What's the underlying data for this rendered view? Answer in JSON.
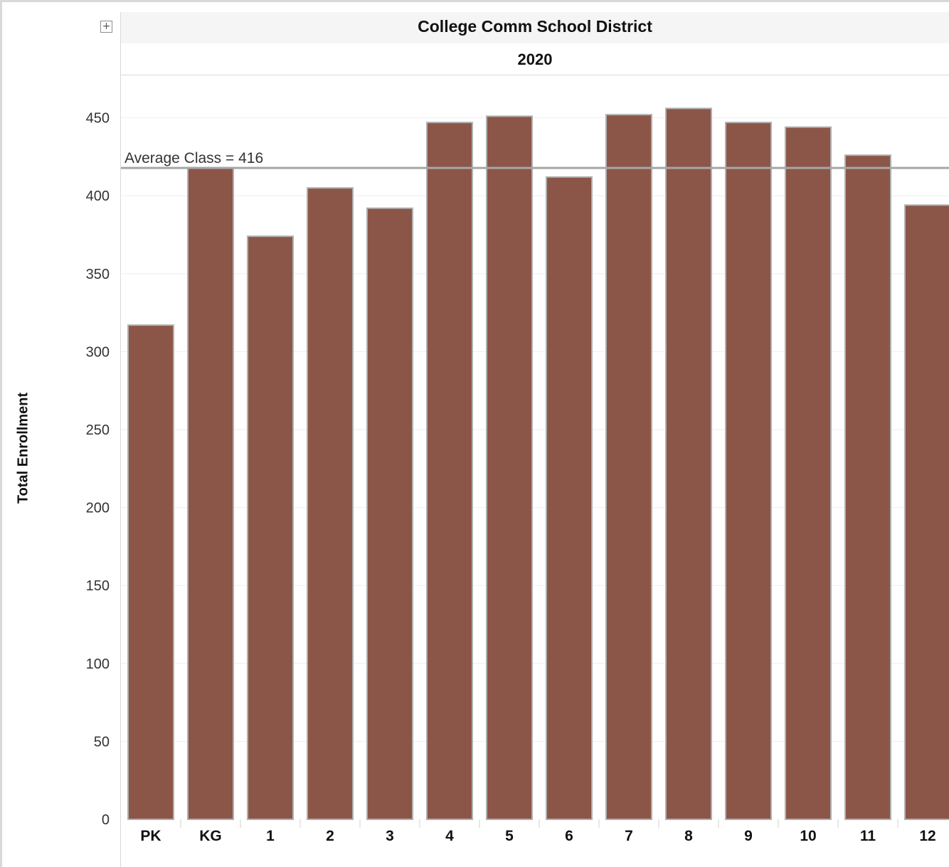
{
  "header": {
    "district": "College Comm School District",
    "year": "2020",
    "expand_icon": "plus-box-icon"
  },
  "chart_data": {
    "type": "bar",
    "title": "College Comm School District",
    "subtitle": "2020",
    "ylabel": "Total Enrollment",
    "xlabel": "",
    "categories": [
      "PK",
      "KG",
      "1",
      "2",
      "3",
      "4",
      "5",
      "6",
      "7",
      "8",
      "9",
      "10",
      "11",
      "12"
    ],
    "values": [
      317,
      418,
      374,
      405,
      392,
      447,
      451,
      412,
      452,
      456,
      447,
      444,
      426,
      394
    ],
    "ylim": [
      0,
      480
    ],
    "yticks": [
      0,
      50,
      100,
      150,
      200,
      250,
      300,
      350,
      400,
      450
    ],
    "grid": true,
    "reference_line": {
      "value": 416,
      "label": "Average Class = 416"
    },
    "colors": {
      "bar": "#8b5648",
      "bar_edge": "#b0b0b0",
      "reference_line": "#a6a6a6",
      "grid": "#eeeeee"
    }
  }
}
